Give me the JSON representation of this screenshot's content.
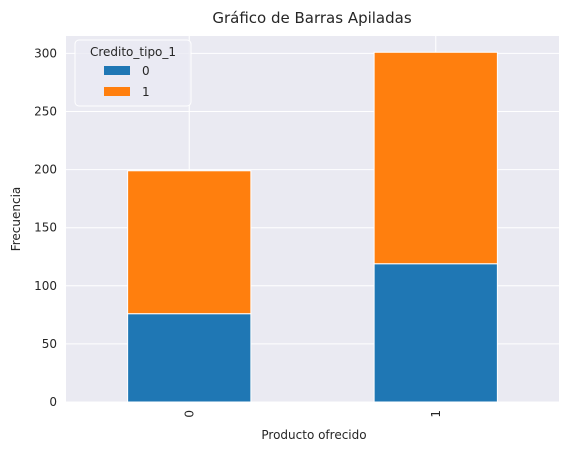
{
  "chart_data": {
    "type": "bar",
    "stacked": true,
    "title": "Gráfico de Barras Apiladas",
    "xlabel": "Producto ofrecido",
    "ylabel": "Frecuencia",
    "categories": [
      "0",
      "1"
    ],
    "series": [
      {
        "name": "0",
        "values": [
          76,
          119
        ],
        "color": "#1f77b4"
      },
      {
        "name": "1",
        "values": [
          123,
          182
        ],
        "color": "#ff7f0e"
      }
    ],
    "ylim": [
      0,
      315
    ],
    "yticks": [
      0,
      50,
      100,
      150,
      200,
      250,
      300
    ],
    "grid": true,
    "legend": {
      "title": "Credito_tipo_1",
      "position": "top-left"
    },
    "x_tick_rotation": 90,
    "background_color": "#eaeaf2",
    "grid_color": "#ffffff"
  }
}
